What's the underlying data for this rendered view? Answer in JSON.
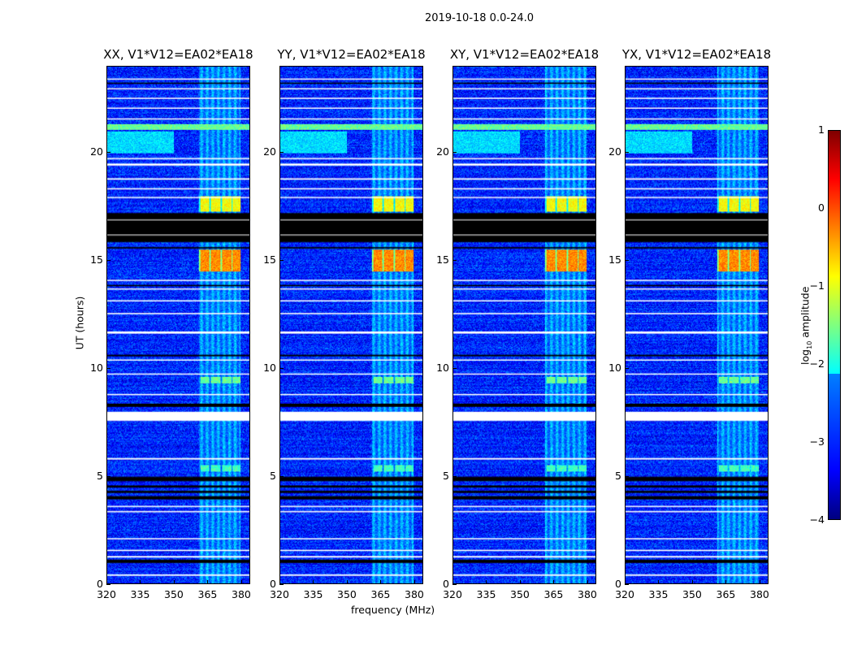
{
  "suptitle": "2019-10-18 0.0-24.0",
  "chart_data": {
    "type": "heatmap",
    "title": "2019-10-18 0.0-24.0",
    "xlabel": "frequency (MHz)",
    "ylabel": "UT (hours)",
    "xlim": [
      320,
      384
    ],
    "ylim": [
      0,
      24
    ],
    "xticks": [
      "320",
      "335",
      "350",
      "365",
      "380"
    ],
    "yticks": [
      "0",
      "5",
      "10",
      "15",
      "20"
    ],
    "xtick_values": [
      320,
      335,
      350,
      365,
      380
    ],
    "ytick_values": [
      0,
      5,
      10,
      15,
      20
    ],
    "panels": [
      {
        "title": "XX, V1*V12=EA02*EA18"
      },
      {
        "title": "YY, V1*V12=EA02*EA18"
      },
      {
        "title": "XY, V1*V12=EA02*EA18"
      },
      {
        "title": "YX, V1*V12=EA02*EA18"
      }
    ],
    "colorbar": {
      "label_prefix": "log",
      "label_sub": "10",
      "label_suffix": " amplitude",
      "range": [
        -4,
        1
      ],
      "ticks": [
        "1",
        "0",
        "−1",
        "−2",
        "−3",
        "−4"
      ],
      "tick_values": [
        1,
        0,
        -1,
        -2,
        -3,
        -4
      ],
      "colormap": "jet"
    },
    "background_log_amplitude": -3.2,
    "rfi_band_mhz": [
      361,
      380
    ],
    "rfi_band_log_amplitude": -2.4,
    "flagged_white_hours": [
      [
        7.55,
        7.97
      ],
      [
        0.35,
        0.42
      ],
      [
        1.2,
        1.27
      ],
      [
        1.5,
        1.56
      ],
      [
        2.05,
        2.1
      ],
      [
        3.3,
        3.36
      ],
      [
        3.55,
        3.6
      ],
      [
        5.75,
        5.82
      ],
      [
        8.75,
        8.8
      ],
      [
        9.7,
        9.75
      ],
      [
        10.35,
        10.4
      ],
      [
        11.6,
        11.7
      ],
      [
        12.5,
        12.56
      ],
      [
        13.1,
        13.15
      ],
      [
        13.65,
        13.7
      ],
      [
        14.05,
        14.1
      ],
      [
        17.9,
        17.95
      ],
      [
        18.3,
        18.36
      ],
      [
        18.75,
        18.82
      ],
      [
        19.4,
        19.5
      ],
      [
        19.7,
        19.76
      ],
      [
        21.55,
        21.6
      ],
      [
        22.05,
        22.1
      ],
      [
        22.5,
        22.56
      ],
      [
        22.95,
        23.0
      ],
      [
        23.4,
        23.45
      ]
    ],
    "flagged_black_hours": [
      [
        15.85,
        17.2
      ],
      [
        3.9,
        4.05
      ],
      [
        4.2,
        4.3
      ],
      [
        4.45,
        4.55
      ],
      [
        4.75,
        4.95
      ],
      [
        0.95,
        1.1
      ],
      [
        8.2,
        8.35
      ],
      [
        10.55,
        10.62
      ],
      [
        15.55,
        15.62
      ],
      [
        13.8,
        13.86
      ],
      [
        23.2,
        23.26
      ]
    ],
    "features": [
      {
        "hours": [
          21.1,
          21.35
        ],
        "mhz": [
          320,
          384
        ],
        "log_amplitude": -1.6
      },
      {
        "hours": [
          20.0,
          21.0
        ],
        "mhz": [
          320,
          350
        ],
        "log_amplitude": -2.3
      },
      {
        "hours": [
          17.3,
          18.0
        ],
        "mhz": [
          361,
          380
        ],
        "log_amplitude": -0.9
      },
      {
        "hours": [
          14.5,
          15.5
        ],
        "mhz": [
          361,
          380
        ],
        "log_amplitude": -0.3
      },
      {
        "hours": [
          9.3,
          9.6
        ],
        "mhz": [
          361,
          380
        ],
        "log_amplitude": -1.6
      },
      {
        "hours": [
          5.2,
          5.5
        ],
        "mhz": [
          361,
          380
        ],
        "log_amplitude": -1.8
      }
    ]
  }
}
